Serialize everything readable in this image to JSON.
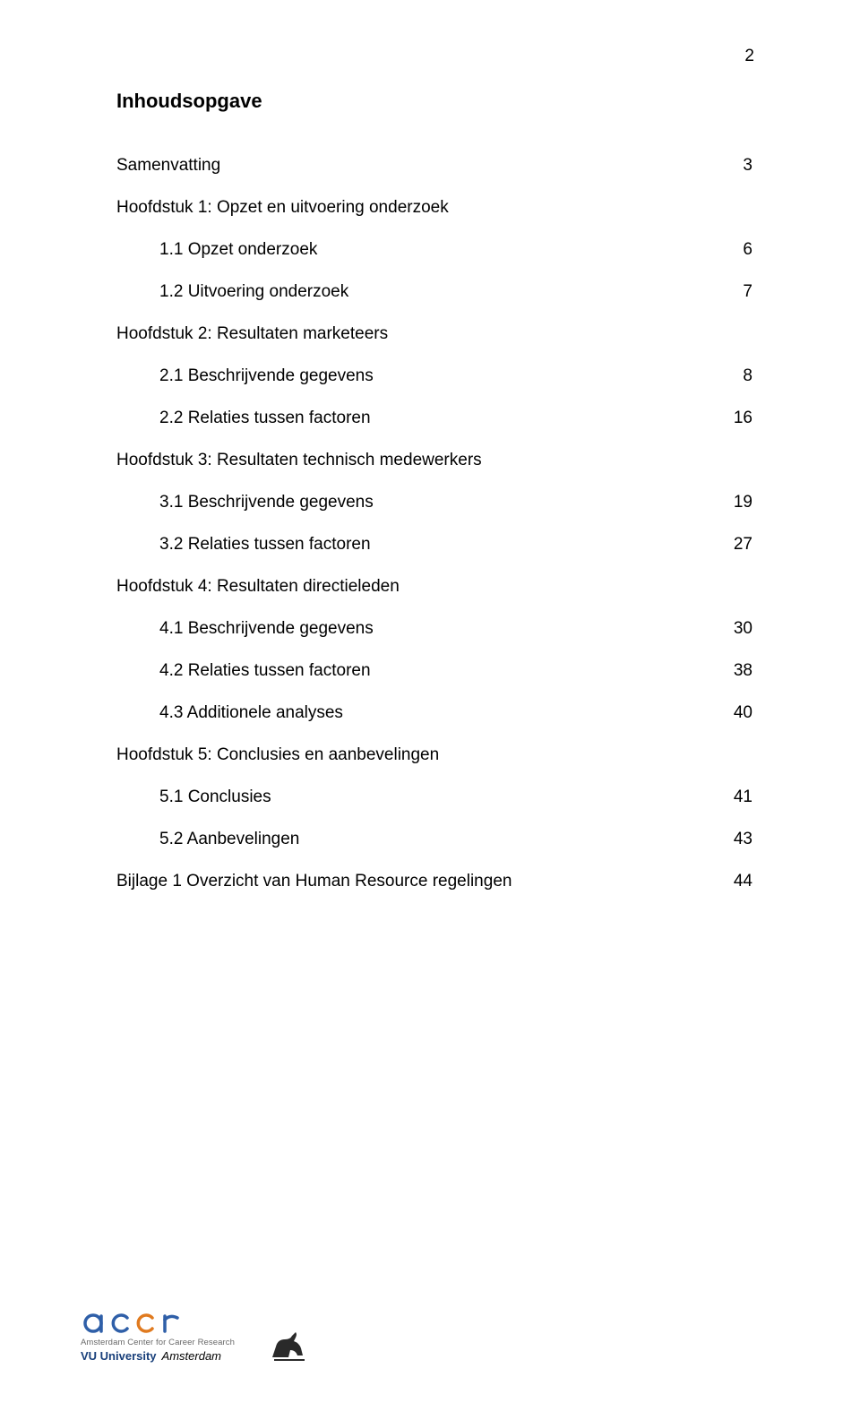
{
  "page_number": "2",
  "title": "Inhoudsopgave",
  "toc": [
    {
      "label": "Samenvatting",
      "page": "3",
      "indent": false
    },
    {
      "label": "Hoofdstuk 1: Opzet en uitvoering onderzoek",
      "page": "",
      "indent": false
    },
    {
      "label": "1.1 Opzet onderzoek",
      "page": "6",
      "indent": true
    },
    {
      "label": "1.2 Uitvoering onderzoek",
      "page": "7",
      "indent": true
    },
    {
      "label": "Hoofdstuk 2: Resultaten marketeers",
      "page": "",
      "indent": false
    },
    {
      "label": "2.1 Beschrijvende gegevens",
      "page": "8",
      "indent": true
    },
    {
      "label": "2.2 Relaties tussen factoren",
      "page": "16",
      "indent": true
    },
    {
      "label": "Hoofdstuk 3: Resultaten technisch medewerkers",
      "page": "",
      "indent": false
    },
    {
      "label": "3.1 Beschrijvende gegevens",
      "page": "19",
      "indent": true
    },
    {
      "label": "3.2 Relaties tussen factoren",
      "page": "27",
      "indent": true
    },
    {
      "label": "Hoofdstuk 4: Resultaten directieleden",
      "page": "",
      "indent": false
    },
    {
      "label": "4.1 Beschrijvende gegevens",
      "page": "30",
      "indent": true
    },
    {
      "label": "4.2 Relaties tussen factoren",
      "page": "38",
      "indent": true
    },
    {
      "label": "4.3 Additionele analyses",
      "page": "40",
      "indent": true
    },
    {
      "label": "Hoofdstuk 5: Conclusies en aanbevelingen",
      "page": "",
      "indent": false
    },
    {
      "label": "5.1 Conclusies",
      "page": "41",
      "indent": true
    },
    {
      "label": "5.2 Aanbevelingen",
      "page": "43",
      "indent": true
    },
    {
      "label": "Bijlage 1 Overzicht van Human Resource regelingen",
      "page": "44",
      "indent": false
    }
  ],
  "footer": {
    "accr_subtitle": "Amsterdam Center for Career Research",
    "vu_name": "VU University",
    "vu_city": "Amsterdam",
    "colors": {
      "accr_blue": "#2f5fa8",
      "accr_orange": "#e07a1f",
      "vu_blue": "#183f7a",
      "griffin": "#2a2a2a",
      "subtitle_grey": "#6a6a6a"
    }
  }
}
